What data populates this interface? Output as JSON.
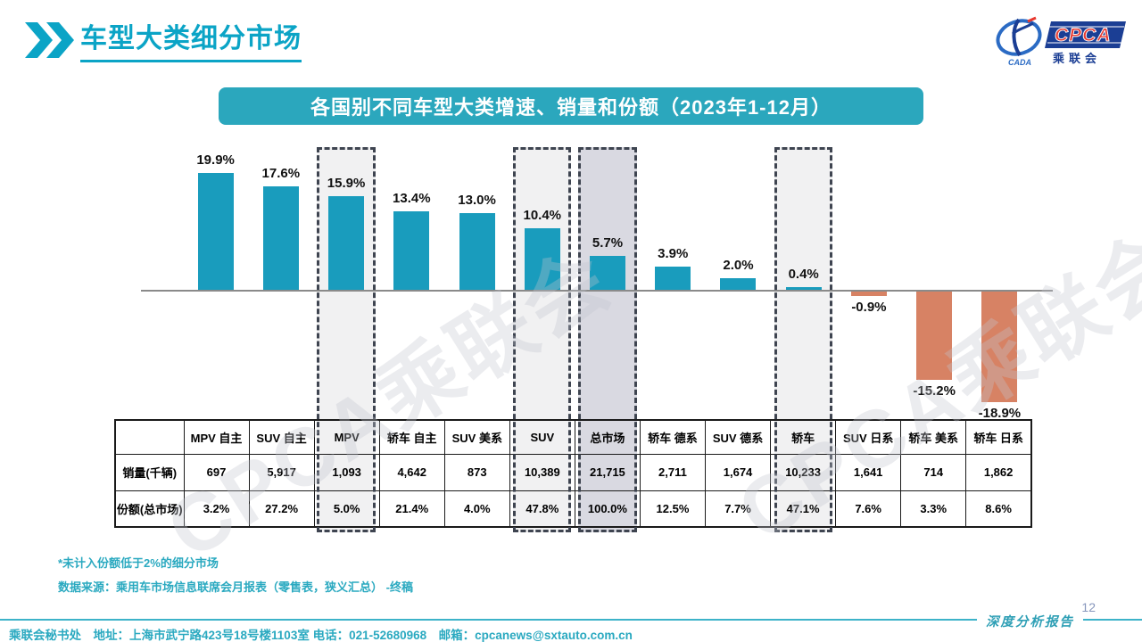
{
  "page": {
    "title": "车型大类细分市场",
    "watermark": "CPCA乘联会"
  },
  "logo": {
    "cada_label": "CADA",
    "cpca_label": "CPCA",
    "cn_label": "乘 联 会"
  },
  "banner": {
    "title": "各国别不同车型大类增速、销量和份额（2023年1-12月）"
  },
  "chart_data": {
    "type": "bar",
    "title": "各国别不同车型大类增速、销量和份额（2023年1-12月）",
    "unit": "%",
    "categories": [
      "MPV 自主",
      "SUV 自主",
      "MPV",
      "轿车 自主",
      "SUV 美系",
      "SUV",
      "总市场",
      "轿车 德系",
      "SUV 德系",
      "轿车",
      "SUV 日系",
      "轿车 美系",
      "轿车 日系"
    ],
    "values": [
      19.9,
      17.6,
      15.9,
      13.4,
      13.0,
      10.4,
      5.7,
      3.9,
      2.0,
      0.4,
      -0.9,
      -15.2,
      -18.9
    ],
    "labels": [
      "19.9%",
      "17.6%",
      "15.9%",
      "13.4%",
      "13.0%",
      "10.4%",
      "5.7%",
      "3.9%",
      "2.0%",
      "0.4%",
      "-0.9%",
      "-15.2%",
      "-18.9%"
    ],
    "ylim": [
      -20,
      22
    ],
    "grid": false,
    "legend": "none",
    "positive_color": "#199CBD",
    "negative_color": "#D78264",
    "baseline_color": "#8a8a8a",
    "highlight_border_color": "#3E4450",
    "highlights": [
      {
        "category": "MPV",
        "index": 2,
        "fill": "#F1F1F2"
      },
      {
        "category": "SUV",
        "index": 5,
        "fill": "#F1F1F2"
      },
      {
        "category": "总市场",
        "index": 6,
        "fill": "#D9D9E1"
      },
      {
        "category": "轿车",
        "index": 9,
        "fill": "#F1F1F2"
      }
    ]
  },
  "table": {
    "corner_label": "",
    "columns": [
      "MPV 自主",
      "SUV 自主",
      "MPV",
      "轿车 自主",
      "SUV 美系",
      "SUV",
      "总市场",
      "轿车 德系",
      "SUV 德系",
      "轿车",
      "SUV 日系",
      "轿车 美系",
      "轿车 日系"
    ],
    "rows": [
      {
        "label": "销量(千辆)",
        "values": [
          "697",
          "5,917",
          "1,093",
          "4,642",
          "873",
          "10,389",
          "21,715",
          "2,711",
          "1,674",
          "10,233",
          "1,641",
          "714",
          "1,862"
        ]
      },
      {
        "label": "份额(总市场)",
        "values": [
          "3.2%",
          "27.2%",
          "5.0%",
          "21.4%",
          "4.0%",
          "47.8%",
          "100.0%",
          "12.5%",
          "7.7%",
          "47.1%",
          "7.6%",
          "3.3%",
          "8.6%"
        ]
      }
    ]
  },
  "footnotes": {
    "line1": "*未计入份额低于2%的细分市场",
    "line2": "数据来源：乘用车市场信息联席会月报表（零售表，狭义汇总） -终稿"
  },
  "footer": {
    "text": "乘联会秘书处　地址：上海市武宁路423号18号楼1103室 电话：021-52680968　邮箱：cpcanews@sxtauto.com.cn",
    "page_number": "12",
    "report_label": "深度分析报告"
  }
}
